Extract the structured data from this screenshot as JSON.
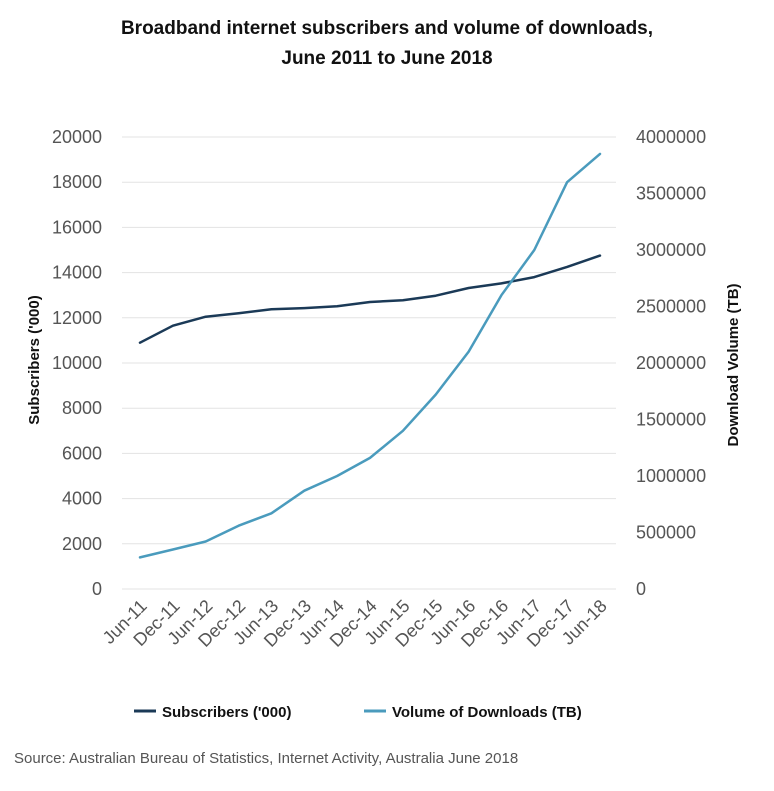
{
  "chart_data": {
    "type": "line",
    "title_line1": "Broadband internet subscribers and volume of downloads,",
    "title_line2": "June 2011 to June 2018",
    "categories": [
      "Jun-11",
      "Dec-11",
      "Jun-12",
      "Dec-12",
      "Jun-13",
      "Dec-13",
      "Jun-14",
      "Dec-14",
      "Jun-15",
      "Dec-15",
      "Jun-16",
      "Dec-16",
      "Jun-17",
      "Dec-17",
      "Jun-18"
    ],
    "y_left": {
      "label": "Subscribers ('000)",
      "range": [
        0,
        20000
      ],
      "ticks": [
        "0",
        "2000",
        "4000",
        "6000",
        "8000",
        "10000",
        "12000",
        "14000",
        "16000",
        "18000",
        "20000"
      ]
    },
    "y_right": {
      "label": "Download Volume (TB)",
      "range": [
        0,
        4000000
      ],
      "ticks": [
        "0",
        "500000",
        "1000000",
        "1500000",
        "2000000",
        "2500000",
        "3000000",
        "3500000",
        "4000000"
      ]
    },
    "grid": true,
    "legend_position": "bottom",
    "series": [
      {
        "name": "Subscribers ('000)",
        "axis": "left",
        "color": "#1b3a57",
        "values": [
          10900,
          11650,
          12050,
          12200,
          12380,
          12430,
          12510,
          12700,
          12780,
          12980,
          13320,
          13520,
          13800,
          14250,
          14750
        ]
      },
      {
        "name": "Volume of Downloads (TB)",
        "axis": "right",
        "color": "#4a9bbd",
        "values": [
          280000,
          350000,
          420000,
          560000,
          670000,
          870000,
          1000000,
          1160000,
          1400000,
          1720000,
          2100000,
          2600000,
          3000000,
          3600000,
          3850000
        ]
      }
    ]
  },
  "source": "Source: Australian Bureau of Statistics, Internet Activity, Australia June 2018"
}
